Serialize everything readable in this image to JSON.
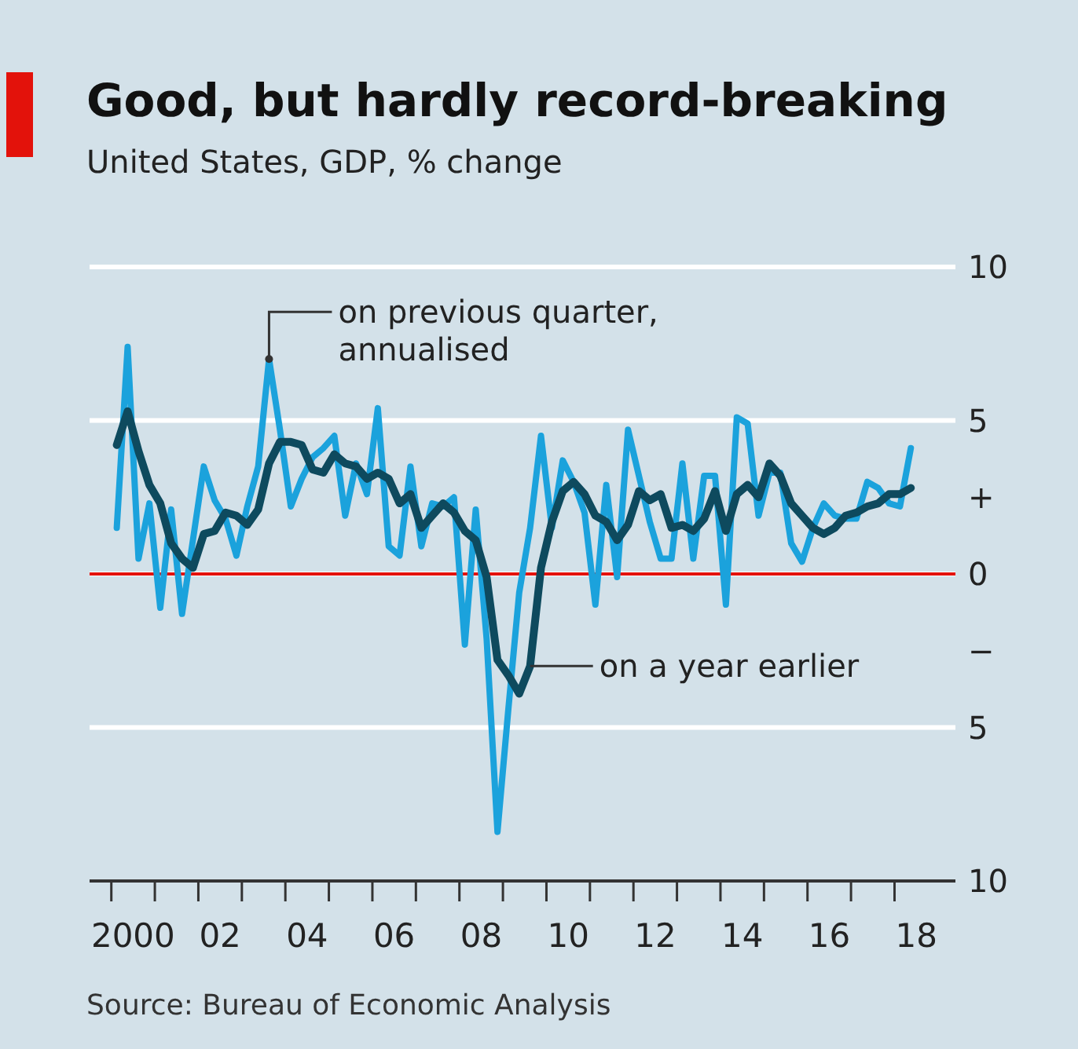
{
  "chart_data": {
    "type": "line",
    "title": "Good, but hardly record-breaking",
    "subtitle": "United States, GDP, % change",
    "annotations": [
      {
        "text": "on previous quarter, annualised",
        "x": 2003.125,
        "y": 7.0
      },
      {
        "text": "on a year earlier",
        "x": 2009.125,
        "y": -3.0
      },
      "Source: Bureau of Economic Analysis"
    ],
    "x": [
      1999.625,
      1999.875,
      2000.125,
      2000.375,
      2000.625,
      2000.875,
      2001.125,
      2001.375,
      2001.625,
      2001.875,
      2002.125,
      2002.375,
      2002.625,
      2002.875,
      2003.125,
      2003.375,
      2003.625,
      2003.875,
      2004.125,
      2004.375,
      2004.625,
      2004.875,
      2005.125,
      2005.375,
      2005.625,
      2005.875,
      2006.125,
      2006.375,
      2006.625,
      2006.875,
      2007.125,
      2007.375,
      2007.625,
      2007.875,
      2008.125,
      2008.375,
      2008.625,
      2008.875,
      2009.125,
      2009.375,
      2009.625,
      2009.875,
      2010.125,
      2010.375,
      2010.625,
      2010.875,
      2011.125,
      2011.375,
      2011.625,
      2011.875,
      2012.125,
      2012.375,
      2012.625,
      2012.875,
      2013.125,
      2013.375,
      2013.625,
      2013.875,
      2014.125,
      2014.375,
      2014.625,
      2014.875,
      2015.125,
      2015.375,
      2015.625,
      2015.875,
      2016.125,
      2016.375,
      2016.625,
      2016.875,
      2017.125,
      2017.375,
      2017.625,
      2017.875
    ],
    "series": [
      {
        "color": "#1ba2dc",
        "values": [
          1.5,
          7.4,
          0.5,
          2.3,
          -1.1,
          2.1,
          -1.3,
          1.1,
          3.5,
          2.4,
          1.8,
          0.6,
          2.2,
          3.5,
          7.0,
          4.7,
          2.2,
          3.1,
          3.8,
          4.1,
          4.5,
          1.9,
          3.6,
          2.6,
          5.4,
          0.9,
          0.6,
          3.5,
          0.9,
          2.3,
          2.2,
          2.5,
          -2.3,
          2.1,
          -2.1,
          -8.4,
          -4.4,
          -0.6,
          1.5,
          4.5,
          1.5,
          3.7,
          3.0,
          2.0,
          -1.0,
          2.9,
          -0.1,
          4.7,
          3.2,
          1.7,
          0.5,
          0.5,
          3.6,
          0.5,
          3.2,
          3.2,
          -1.0,
          5.1,
          4.9,
          1.9,
          3.3,
          3.3,
          1.0,
          0.4,
          1.5,
          2.3,
          1.9,
          1.8,
          1.8,
          3.0,
          2.8,
          2.3,
          2.2,
          4.1
        ]
      },
      {
        "color": "#0e4a5e",
        "values": [
          4.2,
          5.3,
          4.0,
          2.9,
          2.3,
          1.0,
          0.5,
          0.2,
          1.3,
          1.4,
          2.0,
          1.9,
          1.6,
          2.1,
          3.6,
          4.3,
          4.3,
          4.2,
          3.4,
          3.3,
          3.9,
          3.6,
          3.5,
          3.1,
          3.3,
          3.1,
          2.3,
          2.6,
          1.5,
          1.9,
          2.3,
          2.0,
          1.4,
          1.1,
          -0.1,
          -2.8,
          -3.3,
          -3.9,
          -3.0,
          0.2,
          1.7,
          2.7,
          3.0,
          2.6,
          1.9,
          1.7,
          1.1,
          1.6,
          2.7,
          2.4,
          2.6,
          1.5,
          1.6,
          1.4,
          1.8,
          2.7,
          1.4,
          2.6,
          2.9,
          2.5,
          3.6,
          3.2,
          2.3,
          1.9,
          1.5,
          1.3,
          1.5,
          1.9,
          2.0,
          2.2,
          2.3,
          2.6,
          2.6,
          2.8
        ]
      }
    ],
    "xlim": [
      1999.0,
      2018.9
    ],
    "xticks": [
      {
        "value": 1999.5,
        "label": null
      },
      2000,
      {
        "value": 2000.5,
        "label": null
      },
      {
        "value": 2001.5,
        "label": null
      },
      {
        "value": 2002,
        "label": "02"
      },
      {
        "value": 2002.5,
        "label": null
      },
      {
        "value": 2003.5,
        "label": null
      },
      {
        "value": 2004,
        "label": "04"
      },
      {
        "value": 2004.5,
        "label": null
      },
      {
        "value": 2005.5,
        "label": null
      },
      {
        "value": 2006,
        "label": "06"
      },
      {
        "value": 2006.5,
        "label": null
      },
      {
        "value": 2007.5,
        "label": null
      },
      {
        "value": 2008,
        "label": "08"
      },
      {
        "value": 2008.5,
        "label": null
      },
      {
        "value": 2009.5,
        "label": null
      },
      {
        "value": 2010,
        "label": "10"
      },
      {
        "value": 2010.5,
        "label": null
      },
      {
        "value": 2011.5,
        "label": null
      },
      {
        "value": 2012,
        "label": "12"
      },
      {
        "value": 2012.5,
        "label": null
      },
      {
        "value": 2013.5,
        "label": null
      },
      {
        "value": 2014,
        "label": "14"
      },
      {
        "value": 2014.5,
        "label": null
      },
      {
        "value": 2015.5,
        "label": null
      },
      {
        "value": 2016,
        "label": "16"
      },
      {
        "value": 2016.5,
        "label": null
      },
      {
        "value": 2017.5,
        "label": null
      },
      {
        "value": 2018,
        "label": "18"
      }
    ],
    "ylim": [
      -10,
      10
    ],
    "yticks": [
      10,
      5,
      {
        "value": 2.5,
        "label": "+"
      },
      0,
      {
        "value": -2.5,
        "label": "−"
      },
      {
        "value": -5,
        "label": "5"
      },
      {
        "value": -10,
        "label": "10"
      }
    ],
    "grid": "y",
    "ref_lines": [
      {
        "axis": "y",
        "value": 0,
        "color": "#e3120b"
      }
    ]
  }
}
